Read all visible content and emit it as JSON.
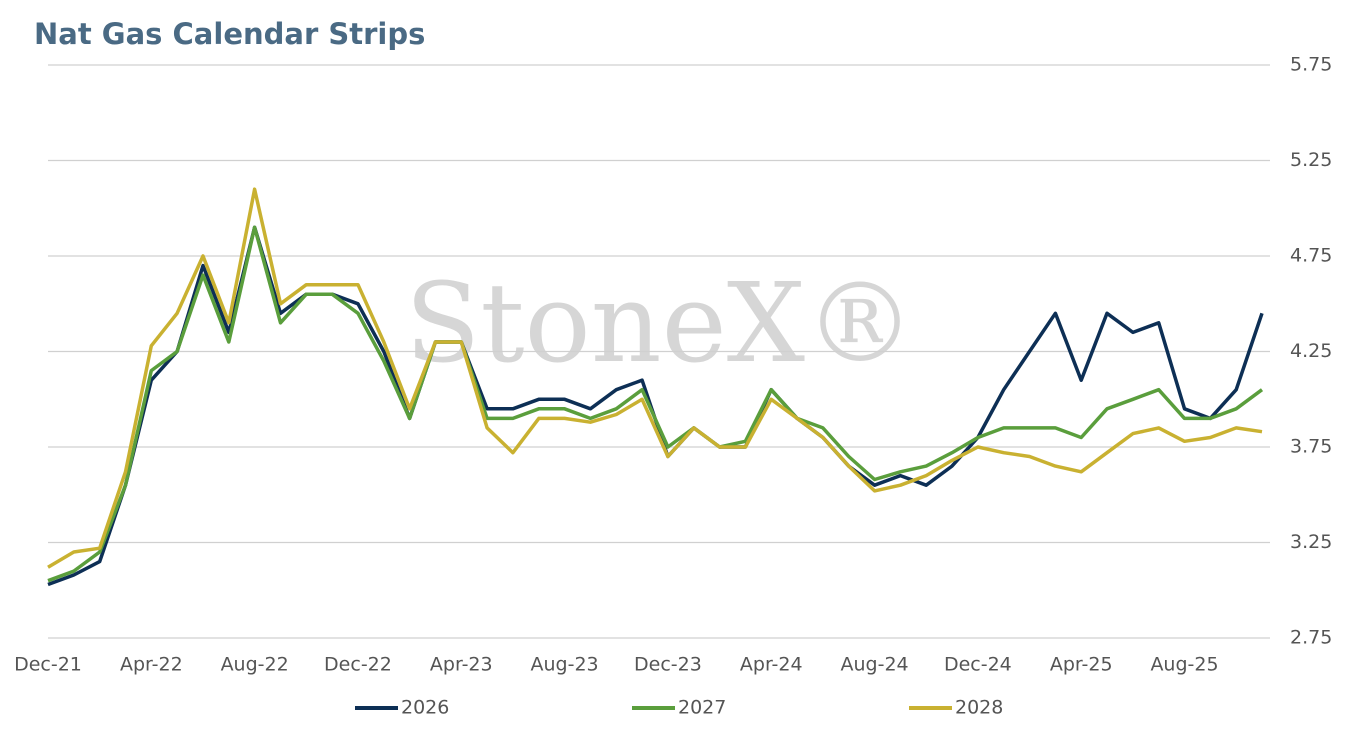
{
  "chart_data": {
    "type": "line",
    "title": "Nat Gas Calendar Strips",
    "watermark": "StoneX®",
    "categories": [
      "Dec-21",
      null,
      null,
      null,
      "Apr-22",
      null,
      null,
      null,
      "Aug-22",
      null,
      null,
      null,
      "Dec-22",
      null,
      null,
      null,
      "Apr-23",
      null,
      null,
      null,
      "Aug-23",
      null,
      null,
      null,
      "Dec-23",
      null,
      null,
      null,
      "Apr-24",
      null,
      null,
      null,
      "Aug-24",
      null,
      null,
      null,
      "Dec-24",
      null,
      null,
      null,
      "Apr-25",
      null,
      null,
      null,
      "Aug-25",
      null,
      null,
      null
    ],
    "series": [
      {
        "name": "2026",
        "color": "#0d2f55",
        "values": [
          3.03,
          3.08,
          3.15,
          3.55,
          4.1,
          4.25,
          4.7,
          4.35,
          4.9,
          4.45,
          4.55,
          4.55,
          4.5,
          4.25,
          3.9,
          4.3,
          4.3,
          3.95,
          3.95,
          4.0,
          4.0,
          3.95,
          4.05,
          4.1,
          3.7,
          3.85,
          3.75,
          3.75,
          4.05,
          3.9,
          3.8,
          3.65,
          3.55,
          3.6,
          3.55,
          3.65,
          3.8,
          4.05,
          4.25,
          4.45,
          4.1,
          4.45,
          4.35,
          4.4,
          3.95,
          3.9,
          4.05,
          4.45
        ]
      },
      {
        "name": "2027",
        "color": "#5a9e3c",
        "values": [
          3.05,
          3.1,
          3.2,
          3.55,
          4.15,
          4.25,
          4.65,
          4.3,
          4.9,
          4.4,
          4.55,
          4.55,
          4.45,
          4.2,
          3.9,
          4.3,
          4.3,
          3.9,
          3.9,
          3.95,
          3.95,
          3.9,
          3.95,
          4.05,
          3.75,
          3.85,
          3.75,
          3.78,
          4.05,
          3.9,
          3.85,
          3.7,
          3.58,
          3.62,
          3.65,
          3.72,
          3.8,
          3.85,
          3.85,
          3.85,
          3.8,
          3.95,
          4.0,
          4.05,
          3.9,
          3.9,
          3.95,
          4.05
        ]
      },
      {
        "name": "2028",
        "color": "#c9b131",
        "values": [
          3.12,
          3.2,
          3.22,
          3.62,
          4.28,
          4.45,
          4.75,
          4.4,
          5.1,
          4.5,
          4.6,
          4.6,
          4.6,
          4.3,
          3.95,
          4.3,
          4.3,
          3.85,
          3.72,
          3.9,
          3.9,
          3.88,
          3.92,
          4.0,
          3.7,
          3.85,
          3.75,
          3.75,
          4.0,
          3.9,
          3.8,
          3.65,
          3.52,
          3.55,
          3.6,
          3.68,
          3.75,
          3.72,
          3.7,
          3.65,
          3.62,
          3.72,
          3.82,
          3.85,
          3.78,
          3.8,
          3.85,
          3.83
        ]
      }
    ],
    "ylim": [
      2.75,
      5.75
    ],
    "yticks": [
      2.75,
      3.25,
      3.75,
      4.25,
      4.75,
      5.25,
      5.75
    ],
    "grid": true
  }
}
